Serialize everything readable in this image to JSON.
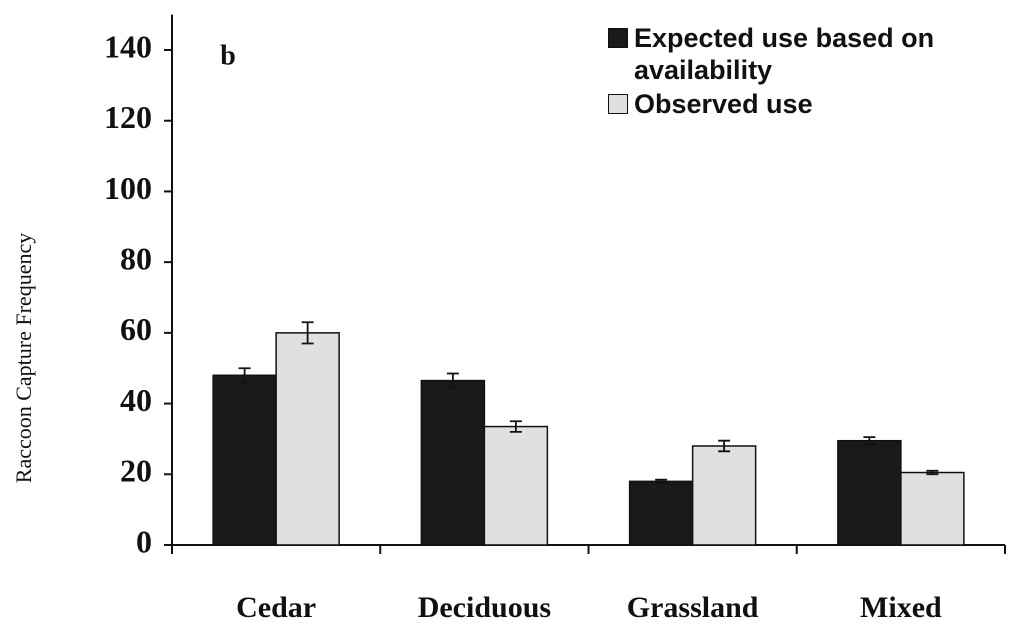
{
  "chart_data": {
    "type": "bar",
    "annotation": "b",
    "y_label": "Raccoon Capture Frequency",
    "categories": [
      "Cedar",
      "Deciduous",
      "Grassland",
      "Mixed"
    ],
    "series": [
      {
        "name": "Expected use based on availability",
        "color": "#1a1a1a",
        "values": [
          48,
          46.5,
          18,
          29.5
        ],
        "errors": [
          2,
          2,
          0.5,
          1
        ]
      },
      {
        "name": "Observed use",
        "color": "#e0e0e0",
        "values": [
          60,
          33.5,
          28,
          20.5
        ],
        "errors": [
          3,
          1.5,
          1.5,
          0.5
        ]
      }
    ],
    "ylim": [
      0,
      150
    ],
    "yticks": [
      0,
      20,
      40,
      60,
      80,
      100,
      120,
      140
    ],
    "grid": false
  }
}
